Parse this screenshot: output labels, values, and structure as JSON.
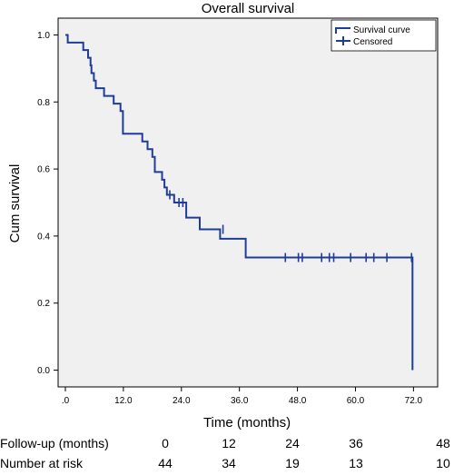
{
  "chart_data": {
    "type": "line",
    "title": "Overall survival",
    "xlabel": "Time (months)",
    "ylabel": "Cum survival",
    "xlim": [
      -1.5,
      77
    ],
    "ylim": [
      -0.05,
      1.05
    ],
    "x_ticks": [
      0,
      12,
      24,
      36,
      48,
      60,
      72
    ],
    "x_tick_labels": [
      ".0",
      "12.0",
      "24.0",
      "36.0",
      "48.0",
      "60.0",
      "72.0"
    ],
    "y_ticks": [
      0,
      0.2,
      0.4,
      0.6,
      0.8,
      1.0
    ],
    "y_tick_labels": [
      "0.0",
      "0.2",
      "0.4",
      "0.6",
      "0.8",
      "1.0"
    ],
    "grid": false,
    "legend_position": "top-right",
    "colors": {
      "curve": "#1f3c99",
      "plot_bg": "#f0f0f0"
    },
    "series": [
      {
        "name": "Survival curve",
        "step_points": [
          [
            0,
            1.0
          ],
          [
            0.5,
            1.0
          ],
          [
            0.5,
            0.977
          ],
          [
            3.7,
            0.977
          ],
          [
            3.7,
            0.955
          ],
          [
            4.7,
            0.955
          ],
          [
            4.7,
            0.932
          ],
          [
            5.2,
            0.932
          ],
          [
            5.2,
            0.909
          ],
          [
            5.4,
            0.909
          ],
          [
            5.4,
            0.886
          ],
          [
            5.9,
            0.886
          ],
          [
            5.9,
            0.864
          ],
          [
            6.3,
            0.864
          ],
          [
            6.3,
            0.841
          ],
          [
            8.0,
            0.841
          ],
          [
            8.0,
            0.818
          ],
          [
            10.0,
            0.818
          ],
          [
            10.0,
            0.795
          ],
          [
            11.4,
            0.795
          ],
          [
            11.4,
            0.773
          ],
          [
            11.9,
            0.773
          ],
          [
            11.9,
            0.705
          ],
          [
            15.9,
            0.705
          ],
          [
            15.9,
            0.682
          ],
          [
            17.0,
            0.682
          ],
          [
            17.0,
            0.659
          ],
          [
            18.0,
            0.659
          ],
          [
            18.0,
            0.636
          ],
          [
            18.5,
            0.636
          ],
          [
            18.5,
            0.591
          ],
          [
            20.0,
            0.591
          ],
          [
            20.0,
            0.568
          ],
          [
            20.5,
            0.568
          ],
          [
            20.5,
            0.545
          ],
          [
            21.0,
            0.545
          ],
          [
            21.0,
            0.523
          ],
          [
            22.5,
            0.523
          ],
          [
            22.5,
            0.5
          ],
          [
            25.0,
            0.5
          ],
          [
            25.0,
            0.455
          ],
          [
            27.8,
            0.455
          ],
          [
            27.8,
            0.42
          ],
          [
            32.0,
            0.42
          ],
          [
            32.0,
            0.392
          ],
          [
            37.3,
            0.392
          ],
          [
            37.3,
            0.336
          ],
          [
            71.8,
            0.336
          ],
          [
            71.8,
            0.0
          ]
        ]
      },
      {
        "name": "Censored",
        "points": [
          [
            21.6,
            0.523
          ],
          [
            23.5,
            0.5
          ],
          [
            24.3,
            0.5
          ],
          [
            32.6,
            0.42
          ],
          [
            45.5,
            0.336
          ],
          [
            48.2,
            0.336
          ],
          [
            49.0,
            0.336
          ],
          [
            53.0,
            0.336
          ],
          [
            54.6,
            0.336
          ],
          [
            55.5,
            0.336
          ],
          [
            59.0,
            0.336
          ],
          [
            62.2,
            0.336
          ],
          [
            63.8,
            0.336
          ],
          [
            66.5,
            0.336
          ],
          [
            71.6,
            0.336
          ]
        ]
      }
    ]
  },
  "risk_table": {
    "row1_label": "Follow-up (months)",
    "row1_values": [
      "0",
      "12",
      "24",
      "36",
      "48"
    ],
    "row2_label": "Number at risk",
    "row2_values": [
      "44",
      "34",
      "19",
      "13",
      "10"
    ]
  }
}
